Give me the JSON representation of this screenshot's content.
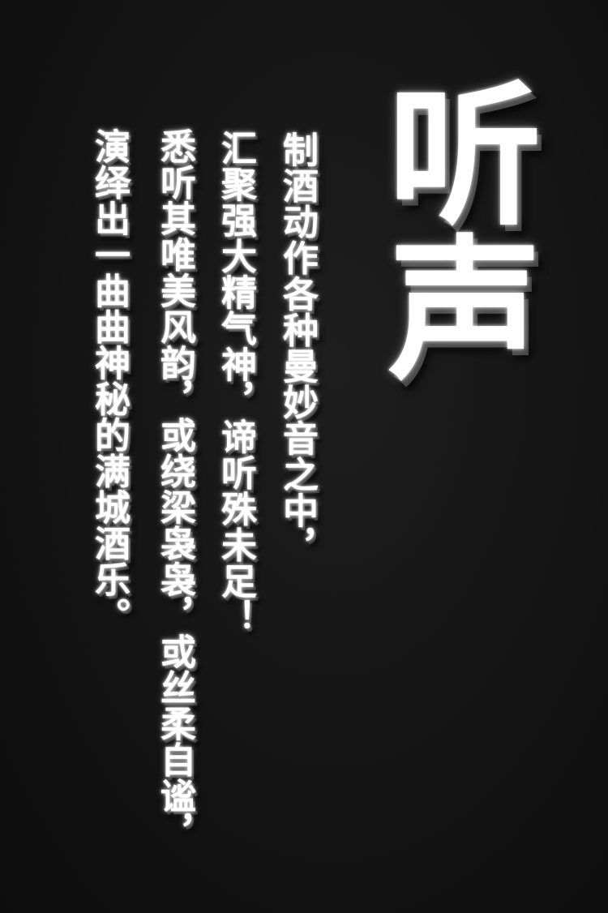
{
  "sign": {
    "title": "听声",
    "lines": [
      "制酒动作各种曼妙音之中，",
      "汇聚强大精气神，谛听殊未足！",
      "悉听其唯美风韵，或绕梁袅袅，或丝柔自谧，",
      "演绎出一曲曲神秘的满城酒乐。"
    ]
  },
  "colors": {
    "background": "#141414",
    "text": "#ffffff"
  }
}
